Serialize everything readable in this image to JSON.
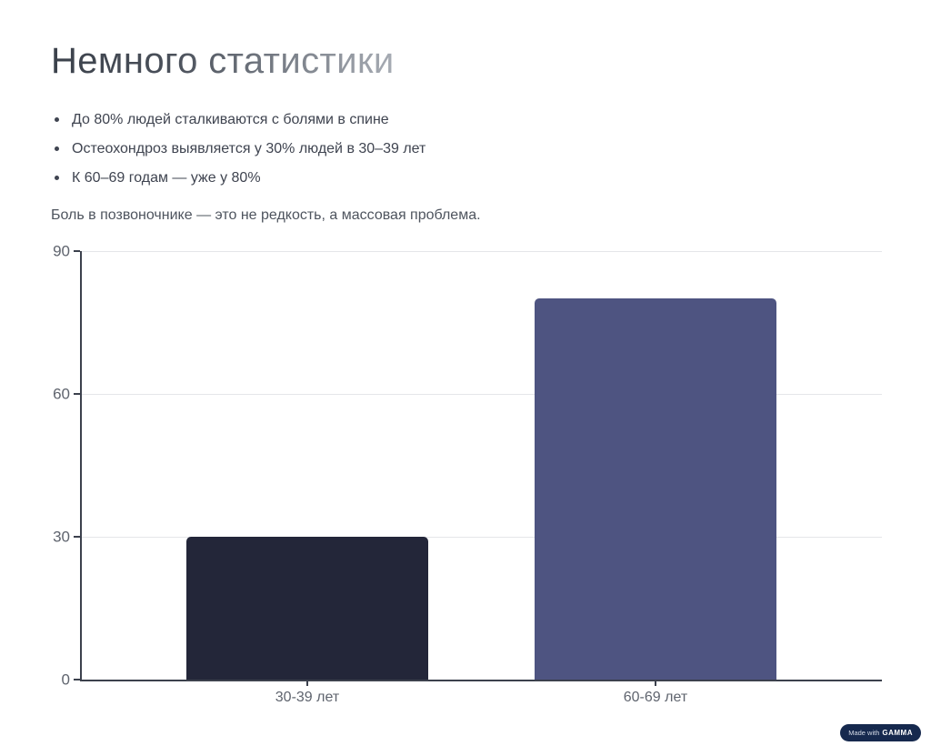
{
  "header": {
    "title": "Немного статистики"
  },
  "bullets": [
    "До 80% людей сталкиваются с болями в спине",
    "Остеохондроз выявляется у 30% людей в 30–39 лет",
    "К 60–69 годам — уже у 80%"
  ],
  "summary": "Боль в позвоночнике — это не редкость, а массовая проблема.",
  "chart_data": {
    "type": "bar",
    "categories": [
      "30-39 лет",
      "60-69 лет"
    ],
    "values": [
      30,
      80
    ],
    "bar_colors": [
      "#232639",
      "#4e5481"
    ],
    "title": "",
    "xlabel": "",
    "ylabel": "",
    "ylim": [
      0,
      90
    ],
    "yticks": [
      0,
      30,
      60,
      90
    ],
    "grid": "horizontal",
    "legend": "none",
    "axis_color": "#3c414d",
    "grid_color": "#e5e6e9",
    "tick_label_color": "#5f646e"
  },
  "badge": {
    "prefix": "Made with",
    "brand": "GAMMA",
    "bg": "#16294e"
  }
}
